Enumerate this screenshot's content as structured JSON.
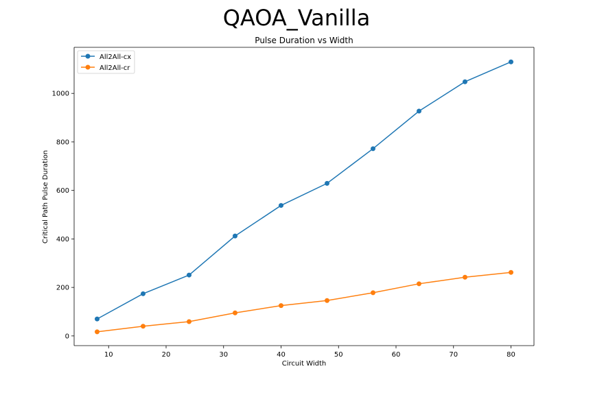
{
  "figure": {
    "suptitle": "QAOA_Vanilla"
  },
  "chart_data": {
    "type": "line",
    "title": "Pulse Duration vs Width",
    "xlabel": "Circuit Width",
    "ylabel": "Critical Path Pulse Duration",
    "xlim": [
      4,
      84
    ],
    "ylim": [
      -40,
      1190
    ],
    "xticks": [
      10,
      20,
      30,
      40,
      50,
      60,
      70,
      80
    ],
    "yticks": [
      0,
      200,
      400,
      600,
      800,
      1000
    ],
    "grid": false,
    "legend_position": "upper left",
    "x": [
      8,
      16,
      24,
      32,
      40,
      48,
      56,
      64,
      72,
      80
    ],
    "series": [
      {
        "name": "All2All-cx",
        "color": "#1f77b4",
        "marker": "circle",
        "values": [
          70,
          174,
          251,
          412,
          538,
          629,
          772,
          927,
          1048,
          1130
        ]
      },
      {
        "name": "All2All-cr",
        "color": "#ff7f0e",
        "marker": "circle",
        "values": [
          17,
          40,
          59,
          95,
          125,
          146,
          178,
          215,
          242,
          262
        ]
      }
    ]
  }
}
